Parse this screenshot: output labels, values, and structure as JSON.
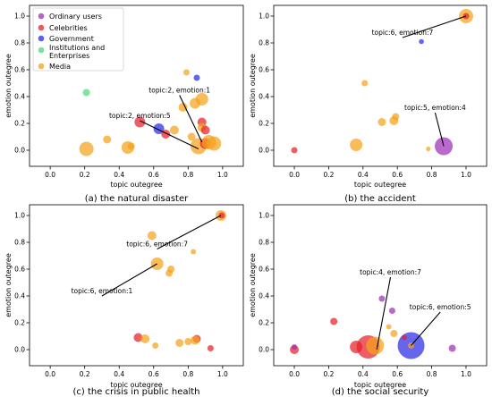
{
  "chart_data": [
    {
      "type": "scatter",
      "caption": "(a) the natural disaster",
      "xlabel": "topic outegree",
      "ylabel": "emotion outegree",
      "xlim": [
        -0.12,
        1.12
      ],
      "ylim": [
        -0.12,
        1.08
      ],
      "xticks": [
        "0.0",
        "0.2",
        "0.4",
        "0.6",
        "0.8",
        "1.0"
      ],
      "yticks": [
        "0.0",
        "0.2",
        "0.4",
        "0.6",
        "0.8",
        "1.0"
      ],
      "legend": {
        "placement": "top-left",
        "entries": [
          {
            "label": "Ordinary users",
            "color": "#9b30b8"
          },
          {
            "label": "Celebrities",
            "color": "#e8202a"
          },
          {
            "label": "Government",
            "color": "#2a2ae8"
          },
          {
            "label": "Institutions and Enterprises",
            "label_lines": [
              "Institutions and",
              "Enterprises"
            ],
            "color": "#4cd97a"
          },
          {
            "label": "Media",
            "color": "#f5a21a"
          }
        ]
      },
      "annotations": [
        {
          "text": "topic:2, emotion:1",
          "x": 0.88,
          "y": 0.06,
          "text_x": 0.75,
          "text_y": 0.43
        },
        {
          "text": "topic:2, emotion:5",
          "x": 0.86,
          "y": 0.01,
          "text_x": 0.52,
          "text_y": 0.24
        }
      ],
      "points": [
        {
          "group": "Institutions and Enterprises",
          "x": 0.21,
          "y": 0.43,
          "size": 4
        },
        {
          "group": "Media",
          "x": 0.21,
          "y": 0.01,
          "size": 8
        },
        {
          "group": "Media",
          "x": 0.33,
          "y": 0.08,
          "size": 4.5
        },
        {
          "group": "Media",
          "x": 0.45,
          "y": 0.02,
          "size": 7
        },
        {
          "group": "Media",
          "x": 0.47,
          "y": 0.03,
          "size": 4
        },
        {
          "group": "Celebrities",
          "x": 0.52,
          "y": 0.21,
          "size": 6
        },
        {
          "group": "Government",
          "x": 0.63,
          "y": 0.16,
          "size": 6
        },
        {
          "group": "Celebrities",
          "x": 0.67,
          "y": 0.12,
          "size": 5
        },
        {
          "group": "Media",
          "x": 0.72,
          "y": 0.15,
          "size": 5
        },
        {
          "group": "Media",
          "x": 0.77,
          "y": 0.32,
          "size": 5
        },
        {
          "group": "Media",
          "x": 0.79,
          "y": 0.58,
          "size": 3.5
        },
        {
          "group": "Government",
          "x": 0.85,
          "y": 0.54,
          "size": 3.5
        },
        {
          "group": "Media",
          "x": 0.84,
          "y": 0.35,
          "size": 6
        },
        {
          "group": "Media",
          "x": 0.88,
          "y": 0.38,
          "size": 7
        },
        {
          "group": "Celebrities",
          "x": 0.88,
          "y": 0.21,
          "size": 5
        },
        {
          "group": "Media",
          "x": 0.88,
          "y": 0.17,
          "size": 5
        },
        {
          "group": "Celebrities",
          "x": 0.9,
          "y": 0.15,
          "size": 5
        },
        {
          "group": "Media",
          "x": 0.86,
          "y": 0.03,
          "size": 9
        },
        {
          "group": "Celebrities",
          "x": 0.9,
          "y": 0.05,
          "size": 6
        },
        {
          "group": "Media",
          "x": 0.92,
          "y": 0.06,
          "size": 8
        },
        {
          "group": "Media",
          "x": 0.95,
          "y": 0.05,
          "size": 8
        },
        {
          "group": "Media",
          "x": 0.82,
          "y": 0.1,
          "size": 4.5
        }
      ]
    },
    {
      "type": "scatter",
      "caption": "(b) the accident",
      "xlabel": "topic outegree",
      "ylabel": "emotion outegree",
      "xlim": [
        -0.12,
        1.12
      ],
      "ylim": [
        -0.12,
        1.08
      ],
      "xticks": [
        "0.0",
        "0.2",
        "0.4",
        "0.6",
        "0.8",
        "1.0"
      ],
      "yticks": [
        "0.0",
        "0.2",
        "0.4",
        "0.6",
        "0.8",
        "1.0"
      ],
      "annotations": [
        {
          "text": "topic:6, emotion:7",
          "x": 1.0,
          "y": 1.0,
          "text_x": 0.63,
          "text_y": 0.86
        },
        {
          "text": "topic:5, emotion:4",
          "x": 0.87,
          "y": 0.03,
          "text_x": 0.82,
          "text_y": 0.3
        }
      ],
      "points": [
        {
          "group": "Media",
          "x": 1.0,
          "y": 1.0,
          "size": 8
        },
        {
          "group": "Celebrities",
          "x": 1.0,
          "y": 1.0,
          "size": 3.5
        },
        {
          "group": "Government",
          "x": 0.74,
          "y": 0.81,
          "size": 2.8
        },
        {
          "group": "Media",
          "x": 0.41,
          "y": 0.5,
          "size": 3.5
        },
        {
          "group": "Media",
          "x": 0.58,
          "y": 0.22,
          "size": 5
        },
        {
          "group": "Media",
          "x": 0.59,
          "y": 0.25,
          "size": 4
        },
        {
          "group": "Media",
          "x": 0.51,
          "y": 0.21,
          "size": 4.5
        },
        {
          "group": "Media",
          "x": 0.36,
          "y": 0.04,
          "size": 7
        },
        {
          "group": "Media",
          "x": 0.78,
          "y": 0.01,
          "size": 2.6
        },
        {
          "group": "Celebrities",
          "x": 0.0,
          "y": 0.0,
          "size": 3.5
        },
        {
          "group": "Ordinary users",
          "x": 0.87,
          "y": 0.03,
          "size": 10
        }
      ]
    },
    {
      "type": "scatter",
      "caption": "(c) the crisis in public health",
      "xlabel": "topic outegree",
      "ylabel": "emotion outegree",
      "xlim": [
        -0.12,
        1.12
      ],
      "ylim": [
        -0.12,
        1.08
      ],
      "xticks": [
        "0.0",
        "0.2",
        "0.4",
        "0.6",
        "0.8",
        "1.0"
      ],
      "yticks": [
        "0.0",
        "0.2",
        "0.4",
        "0.6",
        "0.8",
        "1.0"
      ],
      "annotations": [
        {
          "text": "topic:6, emotion:7",
          "x": 0.99,
          "y": 1.0,
          "text_x": 0.62,
          "text_y": 0.77
        },
        {
          "text": "topic:6, emotion:1",
          "x": 0.62,
          "y": 0.64,
          "text_x": 0.3,
          "text_y": 0.42
        }
      ],
      "points": [
        {
          "group": "Media",
          "x": 0.99,
          "y": 1.0,
          "size": 6
        },
        {
          "group": "Celebrities",
          "x": 0.995,
          "y": 1.0,
          "size": 3.5
        },
        {
          "group": "Media",
          "x": 0.59,
          "y": 0.85,
          "size": 5
        },
        {
          "group": "Media",
          "x": 0.83,
          "y": 0.73,
          "size": 3
        },
        {
          "group": "Media",
          "x": 0.62,
          "y": 0.64,
          "size": 7
        },
        {
          "group": "Media",
          "x": 0.7,
          "y": 0.6,
          "size": 4
        },
        {
          "group": "Media",
          "x": 0.69,
          "y": 0.57,
          "size": 4
        },
        {
          "group": "Celebrities",
          "x": 0.51,
          "y": 0.09,
          "size": 5
        },
        {
          "group": "Media",
          "x": 0.55,
          "y": 0.08,
          "size": 5
        },
        {
          "group": "Media",
          "x": 0.61,
          "y": 0.03,
          "size": 3.5
        },
        {
          "group": "Media",
          "x": 0.75,
          "y": 0.05,
          "size": 4.5
        },
        {
          "group": "Media",
          "x": 0.8,
          "y": 0.06,
          "size": 4
        },
        {
          "group": "Celebrities",
          "x": 0.85,
          "y": 0.08,
          "size": 4.5
        },
        {
          "group": "Media",
          "x": 0.84,
          "y": 0.07,
          "size": 5
        },
        {
          "group": "Celebrities",
          "x": 0.93,
          "y": 0.01,
          "size": 3.5
        }
      ]
    },
    {
      "type": "scatter",
      "caption": "(d) the social security",
      "xlabel": "topic outegree",
      "ylabel": "emotion outegree",
      "xlim": [
        -0.12,
        1.12
      ],
      "ylim": [
        -0.12,
        1.08
      ],
      "xticks": [
        "0.0",
        "0.2",
        "0.4",
        "0.6",
        "0.8",
        "1.0"
      ],
      "yticks": [
        "0.0",
        "0.2",
        "0.4",
        "0.6",
        "0.8",
        "1.0"
      ],
      "annotations": [
        {
          "text": "topic:4, emotion:7",
          "x": 0.48,
          "y": 0.0,
          "text_x": 0.56,
          "text_y": 0.56
        },
        {
          "text": "topic:6, emotion:5",
          "x": 0.68,
          "y": 0.03,
          "text_x": 0.85,
          "text_y": 0.3
        }
      ],
      "points": [
        {
          "group": "Celebrities",
          "x": 0.0,
          "y": 0.0,
          "size": 5
        },
        {
          "group": "Ordinary users",
          "x": 0.0,
          "y": 0.02,
          "size": 3
        },
        {
          "group": "Celebrities",
          "x": 0.23,
          "y": 0.21,
          "size": 4
        },
        {
          "group": "Celebrities",
          "x": 0.36,
          "y": 0.02,
          "size": 7
        },
        {
          "group": "Celebrities",
          "x": 0.43,
          "y": 0.02,
          "size": 13
        },
        {
          "group": "Media",
          "x": 0.47,
          "y": 0.03,
          "size": 10
        },
        {
          "group": "Ordinary users",
          "x": 0.51,
          "y": 0.38,
          "size": 3.5
        },
        {
          "group": "Ordinary users",
          "x": 0.57,
          "y": 0.29,
          "size": 3.5
        },
        {
          "group": "Media",
          "x": 0.55,
          "y": 0.17,
          "size": 3
        },
        {
          "group": "Media",
          "x": 0.58,
          "y": 0.12,
          "size": 4
        },
        {
          "group": "Government",
          "x": 0.68,
          "y": 0.03,
          "size": 15
        },
        {
          "group": "Celebrities",
          "x": 0.64,
          "y": 0.09,
          "size": 3
        },
        {
          "group": "Media",
          "x": 0.68,
          "y": 0.03,
          "size": 3.5
        },
        {
          "group": "Ordinary users",
          "x": 0.92,
          "y": 0.01,
          "size": 4
        }
      ]
    }
  ]
}
